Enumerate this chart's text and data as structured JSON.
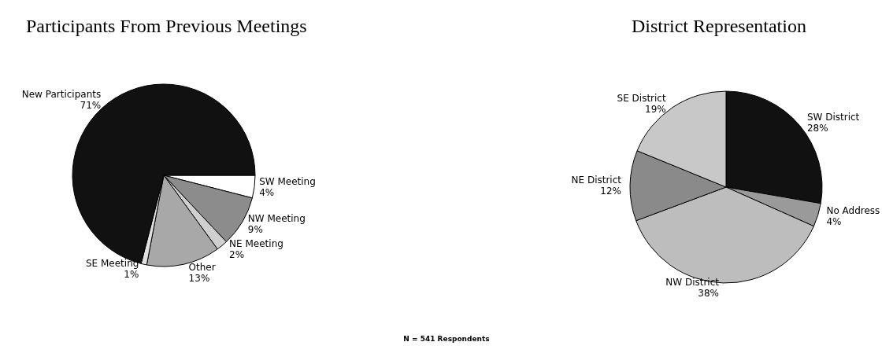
{
  "chart_data": [
    {
      "type": "pie",
      "title": "Participants From Previous Meetings",
      "categories": [
        "SW Meeting",
        "NW Meeting",
        "NE Meeting",
        "Other",
        "SE Meeting",
        "New Participants"
      ],
      "values": [
        4,
        9,
        2,
        13,
        1,
        71
      ],
      "value_labels": [
        "4%",
        "9%",
        "2%",
        "13%",
        "1%",
        "71%"
      ],
      "colors": [
        "#ffffff",
        "#8c8c8c",
        "#d0d0d0",
        "#a8a8a8",
        "#e0e0e0",
        "#111111"
      ],
      "annotations": [
        "N = 541 Respondents"
      ]
    },
    {
      "type": "pie",
      "title": "District Representation",
      "categories": [
        "SW District",
        "No Address",
        "NW District",
        "NE District",
        "SE District"
      ],
      "values": [
        28,
        4,
        38,
        12,
        19
      ],
      "value_labels": [
        "28%",
        "4%",
        "38%",
        "12%",
        "19%"
      ],
      "colors": [
        "#111111",
        "#9a9a9a",
        "#bdbdbd",
        "#8a8a8a",
        "#c8c8c8"
      ]
    }
  ]
}
